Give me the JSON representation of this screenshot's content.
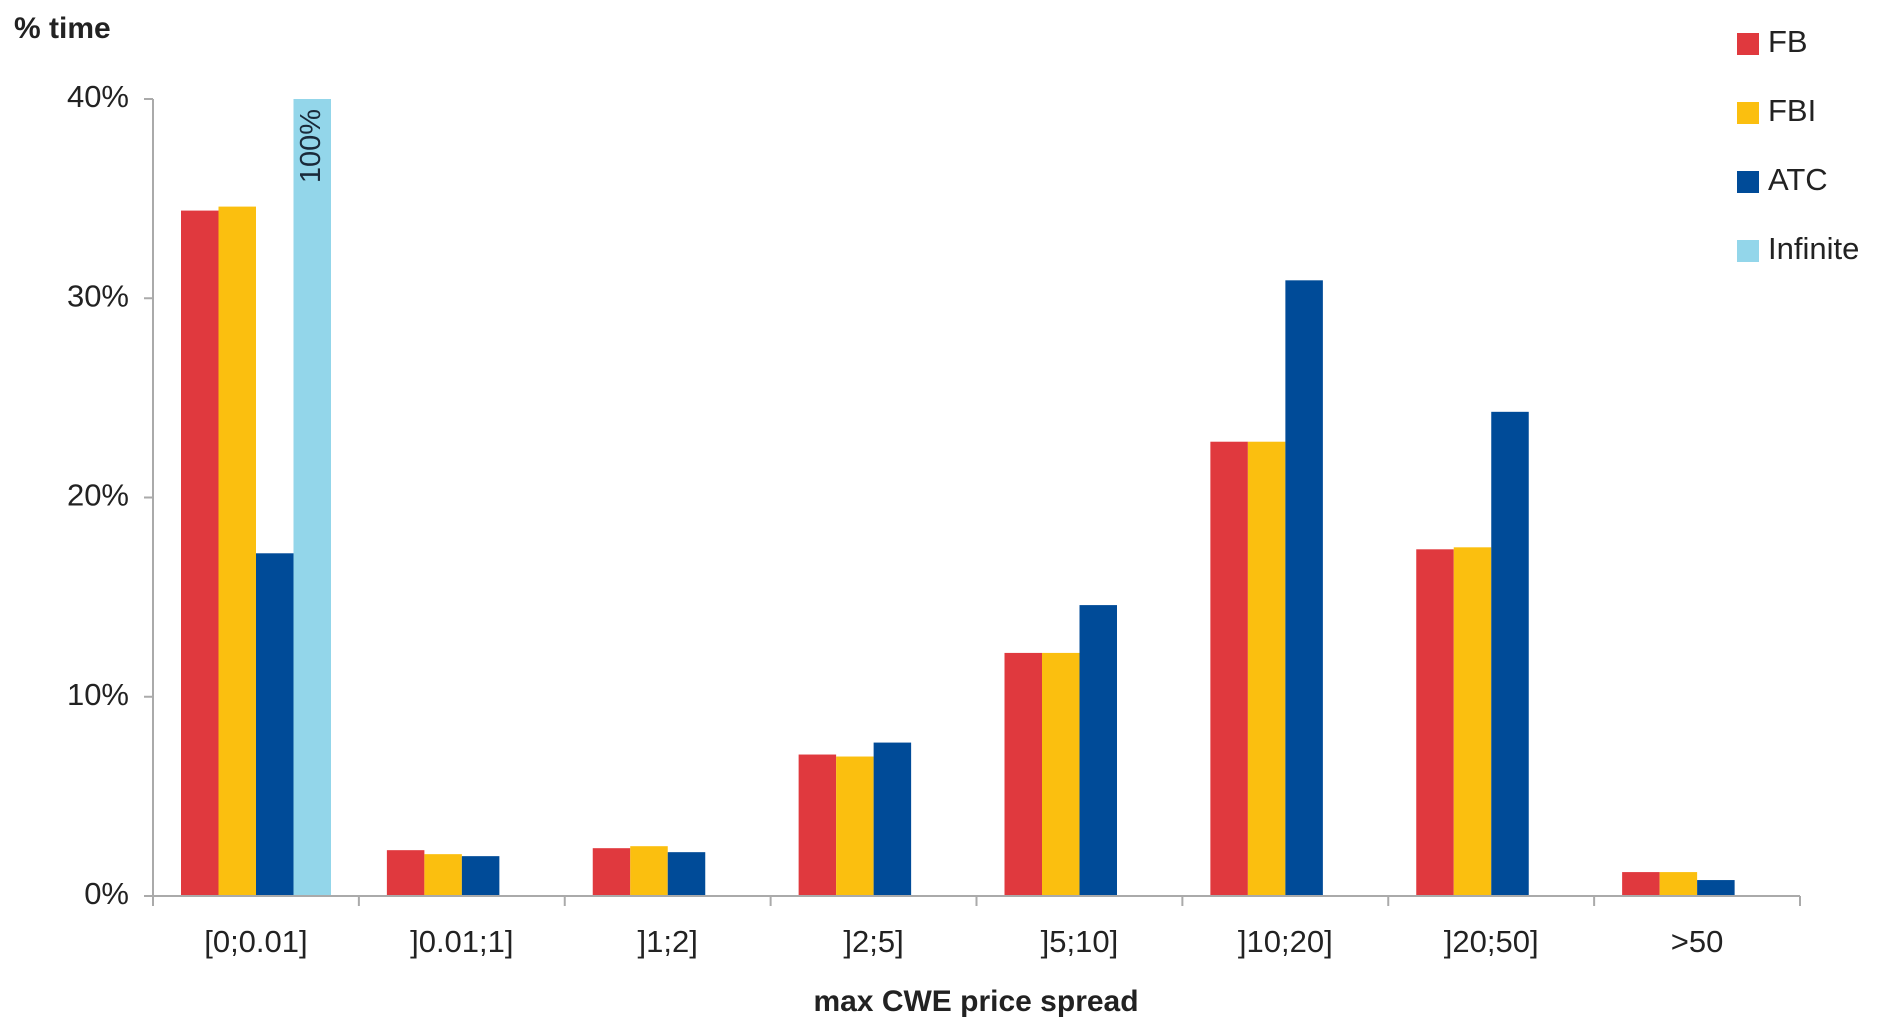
{
  "chart_data": {
    "type": "bar",
    "y_label": "% time",
    "x_label": "max CWE price spread",
    "categories": [
      "[0;0.01]",
      "]0.01;1]",
      "]1;2]",
      "]2;5]",
      "]5;10]",
      "]10;20]",
      "]20;50]",
      ">50"
    ],
    "series": [
      {
        "name": "FB",
        "color": "#e0393e",
        "values": [
          34.4,
          2.3,
          2.4,
          7.1,
          12.2,
          22.8,
          17.4,
          1.2
        ]
      },
      {
        "name": "FBI",
        "color": "#fbbf0f",
        "values": [
          34.6,
          2.1,
          2.5,
          7.0,
          12.2,
          22.8,
          17.5,
          1.2
        ]
      },
      {
        "name": "ATC",
        "color": "#004b98",
        "values": [
          17.2,
          2.0,
          2.2,
          7.7,
          14.6,
          30.9,
          24.3,
          0.8
        ]
      },
      {
        "name": "Infinite",
        "color": "#93d6ea",
        "values": [
          100,
          null,
          null,
          null,
          null,
          null,
          null,
          null
        ],
        "value_labels": [
          "100%",
          null,
          null,
          null,
          null,
          null,
          null,
          null
        ]
      }
    ],
    "ylim": [
      0,
      40
    ],
    "yticks": [
      {
        "value": 0,
        "label": "0%"
      },
      {
        "value": 10,
        "label": "10%"
      },
      {
        "value": 20,
        "label": "20%"
      },
      {
        "value": 30,
        "label": "30%"
      },
      {
        "value": 40,
        "label": "40%"
      }
    ],
    "legend": "top-right"
  }
}
